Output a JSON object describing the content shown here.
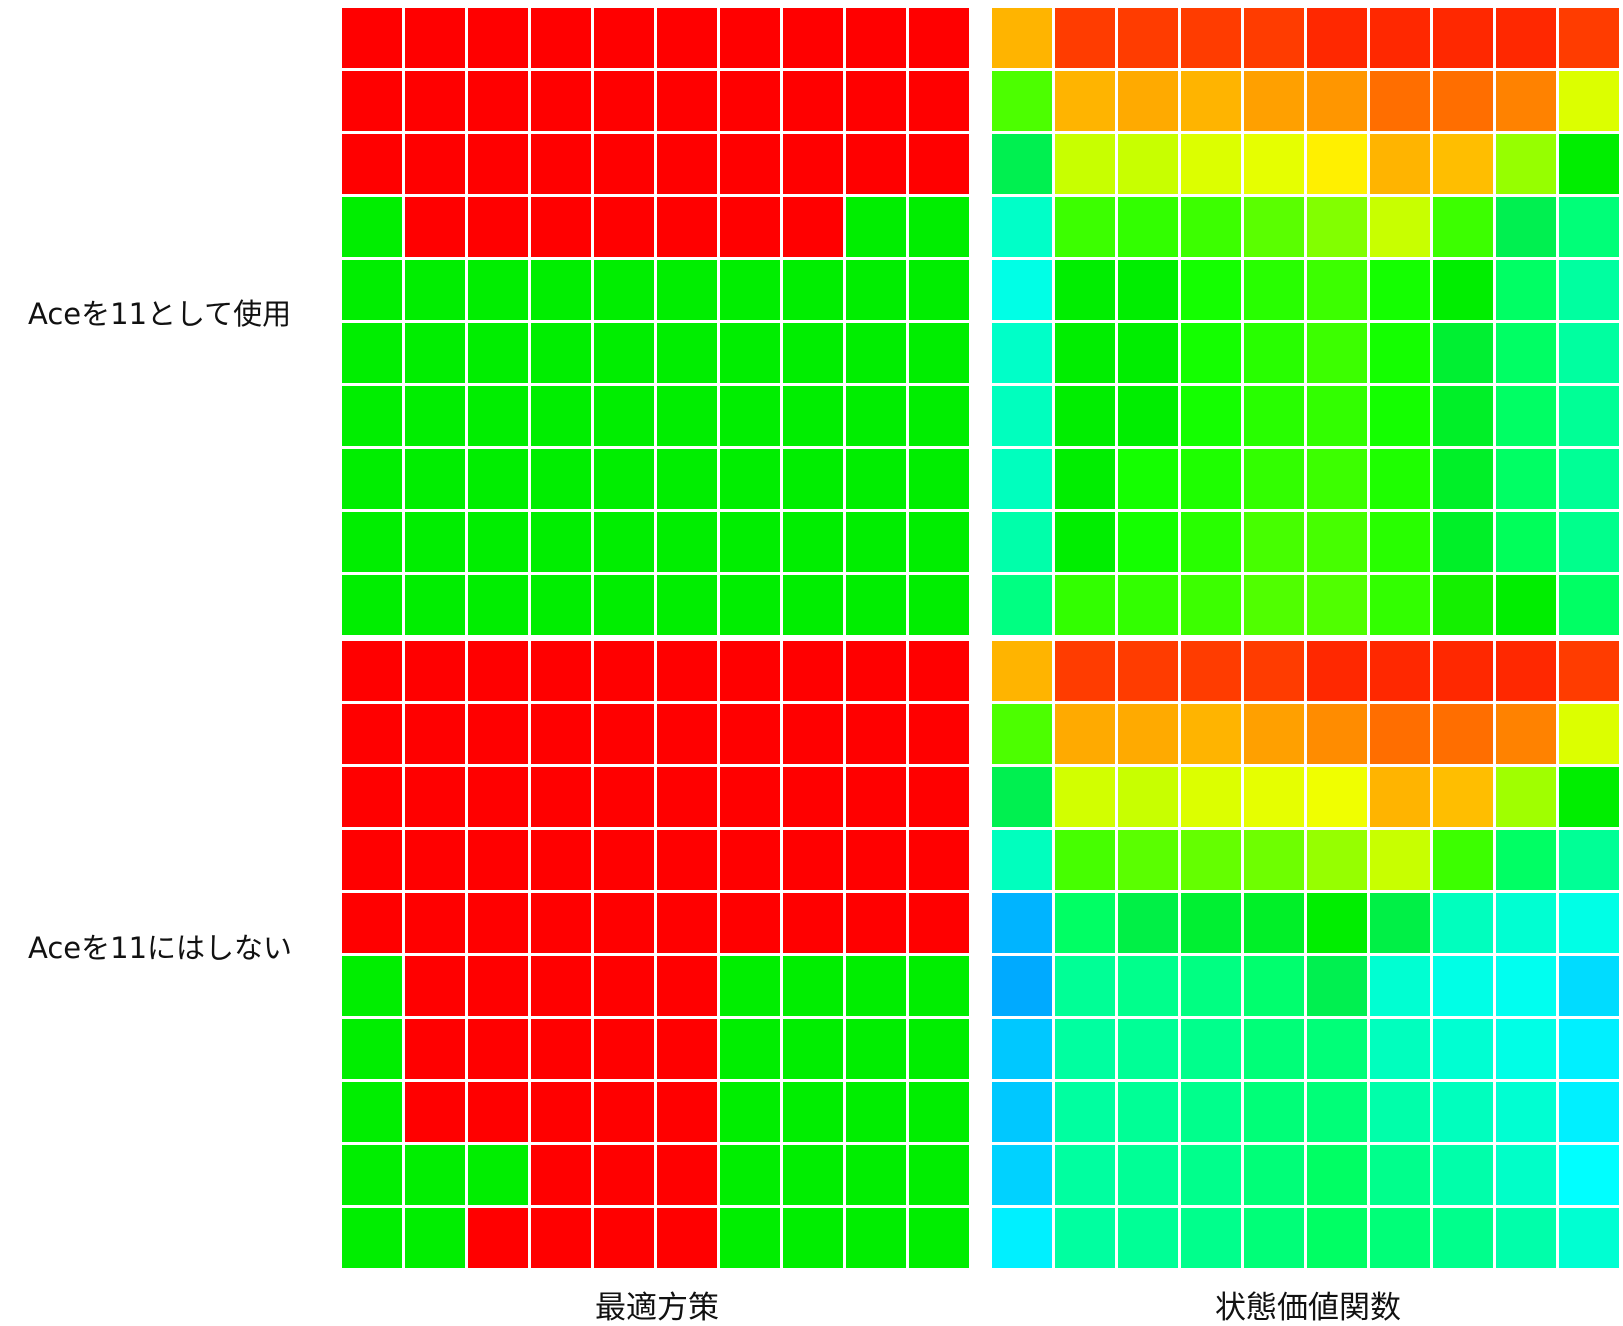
{
  "chart_data": {
    "type": "heatmap",
    "row_labels": [
      "Aceを11として使用",
      "Aceを11にはしない"
    ],
    "column_labels": [
      "最適方策",
      "状態価値関数"
    ],
    "policy_colors": {
      "0": "#ff0000",
      "1": "#00ee00"
    },
    "panels": [
      {
        "name": "policy-usable-ace",
        "row": 0,
        "col": 0,
        "kind": "policy",
        "grid": [
          [
            0,
            0,
            0,
            0,
            0,
            0,
            0,
            0,
            0,
            0
          ],
          [
            0,
            0,
            0,
            0,
            0,
            0,
            0,
            0,
            0,
            0
          ],
          [
            0,
            0,
            0,
            0,
            0,
            0,
            0,
            0,
            0,
            0
          ],
          [
            1,
            0,
            0,
            0,
            0,
            0,
            0,
            0,
            1,
            1
          ],
          [
            1,
            1,
            1,
            1,
            1,
            1,
            1,
            1,
            1,
            1
          ],
          [
            1,
            1,
            1,
            1,
            1,
            1,
            1,
            1,
            1,
            1
          ],
          [
            1,
            1,
            1,
            1,
            1,
            1,
            1,
            1,
            1,
            1
          ],
          [
            1,
            1,
            1,
            1,
            1,
            1,
            1,
            1,
            1,
            1
          ],
          [
            1,
            1,
            1,
            1,
            1,
            1,
            1,
            1,
            1,
            1
          ],
          [
            1,
            1,
            1,
            1,
            1,
            1,
            1,
            1,
            1,
            1
          ]
        ]
      },
      {
        "name": "value-usable-ace",
        "row": 0,
        "col": 1,
        "kind": "value",
        "grid": [
          [
            "#ffb400",
            "#ff3c00",
            "#ff3c00",
            "#ff3c00",
            "#ff3c00",
            "#ff2800",
            "#ff2800",
            "#ff2800",
            "#ff2800",
            "#ff3c00"
          ],
          [
            "#4cff00",
            "#ffb400",
            "#ffaa00",
            "#ffb400",
            "#ffa000",
            "#ff9600",
            "#ff6e00",
            "#ff6e00",
            "#ff8200",
            "#dcff00"
          ],
          [
            "#00f050",
            "#c8ff00",
            "#c8ff00",
            "#dcff00",
            "#e6ff00",
            "#fff000",
            "#ffb400",
            "#ffbe00",
            "#96ff00",
            "#00ee00"
          ],
          [
            "#00ffc8",
            "#3cff00",
            "#32ff00",
            "#3cff00",
            "#5aff00",
            "#82ff00",
            "#c8ff00",
            "#3cff00",
            "#00f050",
            "#00ff78"
          ],
          [
            "#00ffe6",
            "#00ee00",
            "#00ee00",
            "#14ff00",
            "#28ff00",
            "#3cff00",
            "#14ff00",
            "#00ee00",
            "#00ff64",
            "#00ffa0"
          ],
          [
            "#00ffc8",
            "#00ee00",
            "#00ee00",
            "#14ff00",
            "#28ff00",
            "#3cff00",
            "#14ff00",
            "#00f032",
            "#00ff64",
            "#00ffa0"
          ],
          [
            "#00ffbe",
            "#00ee00",
            "#00ee00",
            "#14ff00",
            "#28ff00",
            "#32ff00",
            "#14ff00",
            "#00f028",
            "#00ff64",
            "#00ff96"
          ],
          [
            "#00ffbe",
            "#00ee00",
            "#14ff00",
            "#1eff00",
            "#32ff00",
            "#3cff00",
            "#1eff00",
            "#00f028",
            "#00ff64",
            "#00ff96"
          ],
          [
            "#00ffaa",
            "#00ee00",
            "#14ff00",
            "#28ff00",
            "#46ff00",
            "#46ff00",
            "#28ff00",
            "#00f028",
            "#00ff5a",
            "#00ff8c"
          ],
          [
            "#00ff82",
            "#32ff00",
            "#32ff00",
            "#3cff00",
            "#50ff00",
            "#50ff00",
            "#32ff00",
            "#14f000",
            "#00ee00",
            "#00ff64"
          ]
        ]
      },
      {
        "name": "policy-no-usable-ace",
        "row": 1,
        "col": 0,
        "kind": "policy",
        "grid": [
          [
            0,
            0,
            0,
            0,
            0,
            0,
            0,
            0,
            0,
            0
          ],
          [
            0,
            0,
            0,
            0,
            0,
            0,
            0,
            0,
            0,
            0
          ],
          [
            0,
            0,
            0,
            0,
            0,
            0,
            0,
            0,
            0,
            0
          ],
          [
            0,
            0,
            0,
            0,
            0,
            0,
            0,
            0,
            0,
            0
          ],
          [
            0,
            0,
            0,
            0,
            0,
            0,
            0,
            0,
            0,
            0
          ],
          [
            1,
            0,
            0,
            0,
            0,
            0,
            1,
            1,
            1,
            1
          ],
          [
            1,
            0,
            0,
            0,
            0,
            0,
            1,
            1,
            1,
            1
          ],
          [
            1,
            0,
            0,
            0,
            0,
            0,
            1,
            1,
            1,
            1
          ],
          [
            1,
            1,
            1,
            0,
            0,
            0,
            1,
            1,
            1,
            1
          ],
          [
            1,
            1,
            0,
            0,
            0,
            0,
            1,
            1,
            1,
            1
          ]
        ]
      },
      {
        "name": "value-no-usable-ace",
        "row": 1,
        "col": 1,
        "kind": "value",
        "grid": [
          [
            "#ffb400",
            "#ff3c00",
            "#ff3c00",
            "#ff3c00",
            "#ff3c00",
            "#ff2800",
            "#ff2800",
            "#ff2800",
            "#ff2800",
            "#ff3c00"
          ],
          [
            "#4cff00",
            "#ffaa00",
            "#ffaa00",
            "#ffb400",
            "#ffa000",
            "#ff8c00",
            "#ff6e00",
            "#ff6e00",
            "#ff8200",
            "#dcff00"
          ],
          [
            "#00f050",
            "#d2ff00",
            "#c8ff00",
            "#dcff00",
            "#e6ff00",
            "#f0ff00",
            "#ffb400",
            "#ffbe00",
            "#a0ff00",
            "#00ee00"
          ],
          [
            "#00ffbe",
            "#46ff00",
            "#5aff00",
            "#64ff00",
            "#6eff00",
            "#96ff00",
            "#c8ff00",
            "#3cff00",
            "#00ff64",
            "#00ff96"
          ],
          [
            "#00b4ff",
            "#00ff64",
            "#00f046",
            "#00f032",
            "#00f028",
            "#00ee00",
            "#00f046",
            "#00ffbe",
            "#00ffd2",
            "#00ffe6"
          ],
          [
            "#00aaff",
            "#00ff96",
            "#00ff8c",
            "#00ff82",
            "#00ff6e",
            "#00f050",
            "#00ffd2",
            "#00ffe6",
            "#00fff0",
            "#00dcff"
          ],
          [
            "#00c8ff",
            "#00ffa0",
            "#00ff96",
            "#00ff8c",
            "#00ff78",
            "#00ff78",
            "#00ffbe",
            "#00ffd2",
            "#00ffe6",
            "#00f0ff"
          ],
          [
            "#00c8ff",
            "#00ffa0",
            "#00ff96",
            "#00ff8c",
            "#00ff78",
            "#00ff78",
            "#00ffaa",
            "#00ffbe",
            "#00ffd2",
            "#00f0ff"
          ],
          [
            "#00d2ff",
            "#00ffa0",
            "#00ff96",
            "#00ff8c",
            "#00ff78",
            "#00ff64",
            "#00ff8c",
            "#00ffaa",
            "#00ffc8",
            "#00ffff"
          ],
          [
            "#00f0ff",
            "#00ffa0",
            "#00ff96",
            "#00ff8c",
            "#00ff78",
            "#00ff64",
            "#00ff78",
            "#00ff8c",
            "#00ffaa",
            "#00ffd2"
          ]
        ]
      }
    ]
  }
}
